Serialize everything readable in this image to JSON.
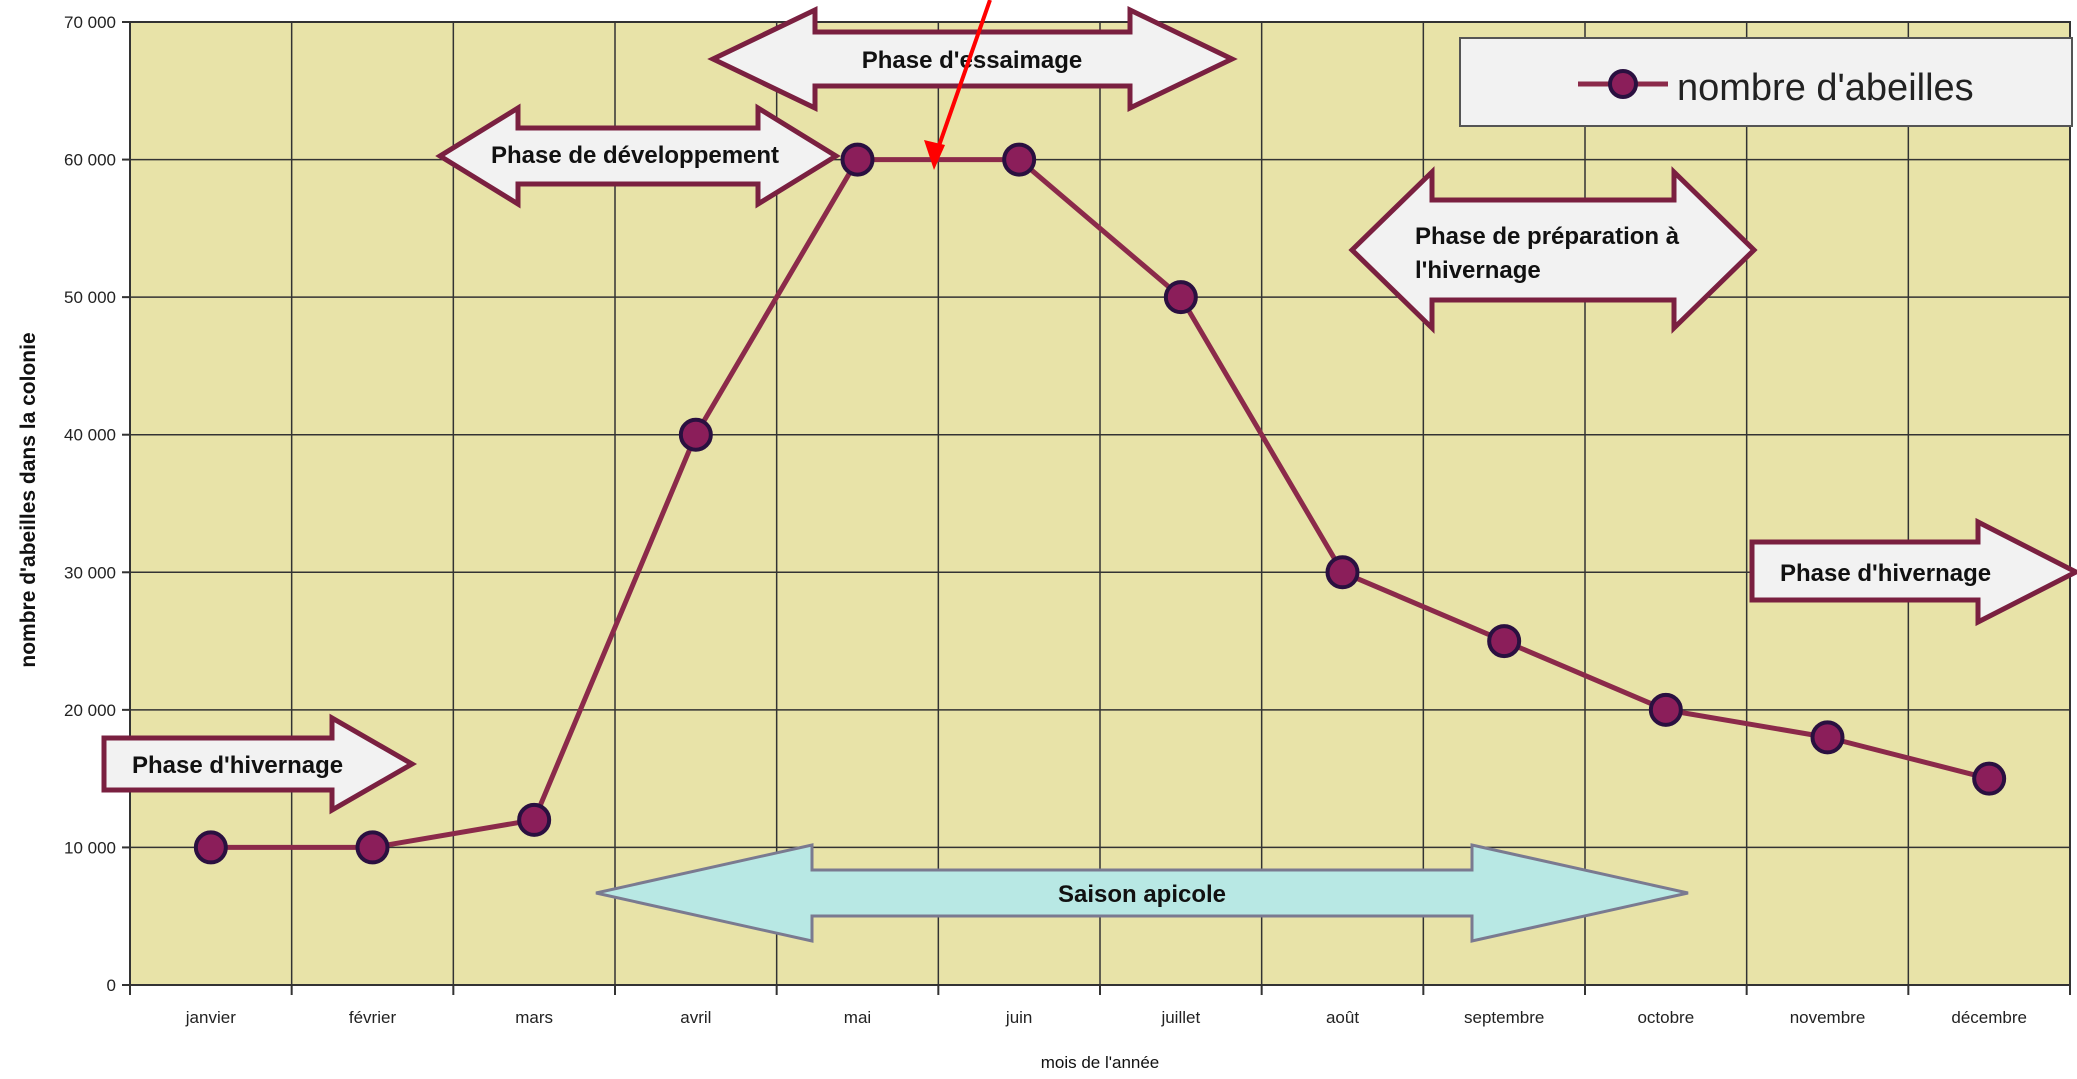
{
  "chart_data": {
    "type": "line",
    "categories": [
      "janvier",
      "février",
      "mars",
      "avril",
      "mai",
      "juin",
      "juillet",
      "août",
      "septembre",
      "octobre",
      "novembre",
      "décembre"
    ],
    "series": [
      {
        "name": "nombre d'abeilles",
        "values": [
          10000,
          10000,
          12000,
          40000,
          60000,
          60000,
          50000,
          30000,
          25000,
          20000,
          18000,
          15000
        ]
      }
    ],
    "ylabel": "nombre d'abeilles dans la colonie",
    "xlabel": "mois de l'année",
    "ylim": [
      0,
      70000
    ],
    "yticks": [
      0,
      10000,
      20000,
      30000,
      40000,
      50000,
      60000,
      70000
    ],
    "ytick_labels": [
      "0",
      "10 000",
      "20 000",
      "30 000",
      "40 000",
      "50 000",
      "60 000",
      "70 000"
    ],
    "grid": true,
    "legend_position": "top-right",
    "annotations": {
      "essaimage": "Phase d'essaimage",
      "developpement": "Phase de développement",
      "preparation_line1": "Phase de préparation à",
      "preparation_line2": "l'hivernage",
      "hivernage_right": "Phase d'hivernage",
      "hivernage_left": "Phase d'hivernage",
      "saison": "Saison apicole"
    },
    "colors": {
      "plot_background": "#e8e3a8",
      "line": "#8b2a4a",
      "marker_fill": "#8b1e5a",
      "marker_edge": "#2a1040",
      "arrow_stroke": "#7a2040",
      "arrow_fill": "#f2f2f2",
      "saison_fill": "#b8e8e4",
      "saison_stroke": "#7a7a90",
      "pointer_arrow": "#ff0000"
    }
  }
}
